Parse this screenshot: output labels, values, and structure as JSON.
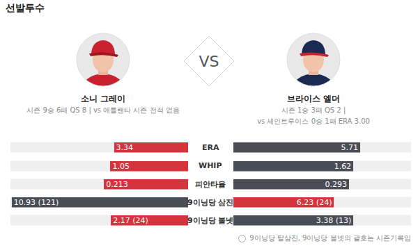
{
  "chart_data": {
    "type": "bar",
    "title": "선발투수",
    "orientation": "horizontal",
    "tick_labels": false,
    "data_labels": true,
    "categories": [
      "ERA",
      "WHIP",
      "피안타율",
      "9이닝당 삼진",
      "9이닝당 볼넷"
    ],
    "xlim": [
      [
        0,
        8
      ],
      [
        0,
        2.4
      ],
      [
        0,
        0.45
      ],
      [
        0,
        11
      ],
      [
        0,
        5
      ]
    ],
    "series": [
      {
        "name": "소니 그레이",
        "values": [
          3.34,
          1.05,
          0.213,
          10.93,
          2.17
        ],
        "value_labels": [
          "3.34",
          "1.05",
          "0.213",
          "10.93 (121)",
          "2.17 (24)"
        ],
        "colors": [
          "#d4343e",
          "#d4343e",
          "#d4343e",
          "#4b4d56",
          "#d4343e"
        ]
      },
      {
        "name": "브라이스 엘더",
        "values": [
          5.71,
          1.62,
          0.293,
          6.23,
          3.38
        ],
        "value_labels": [
          "5.71",
          "1.62",
          "0.293",
          "6.23 (24)",
          "3.38 (13)"
        ],
        "colors": [
          "#4b4d56",
          "#4b4d56",
          "#4b4d56",
          "#d4343e",
          "#4b4d56"
        ]
      }
    ]
  },
  "vs": "VS",
  "players": [
    {
      "lines": [
        "시즌 9승 6패 QS 8  |  vs 애틀랜타 시즌 전적 없음"
      ]
    },
    {
      "lines": [
        "시즌 1승 3패 QS 2  |",
        "vs 세인트루이스 0승 1패 ERA 3.00"
      ]
    }
  ],
  "footnote": "9이닝당 탈삼진, 9이닝당 볼넷의 괄호는 시즌기록임"
}
